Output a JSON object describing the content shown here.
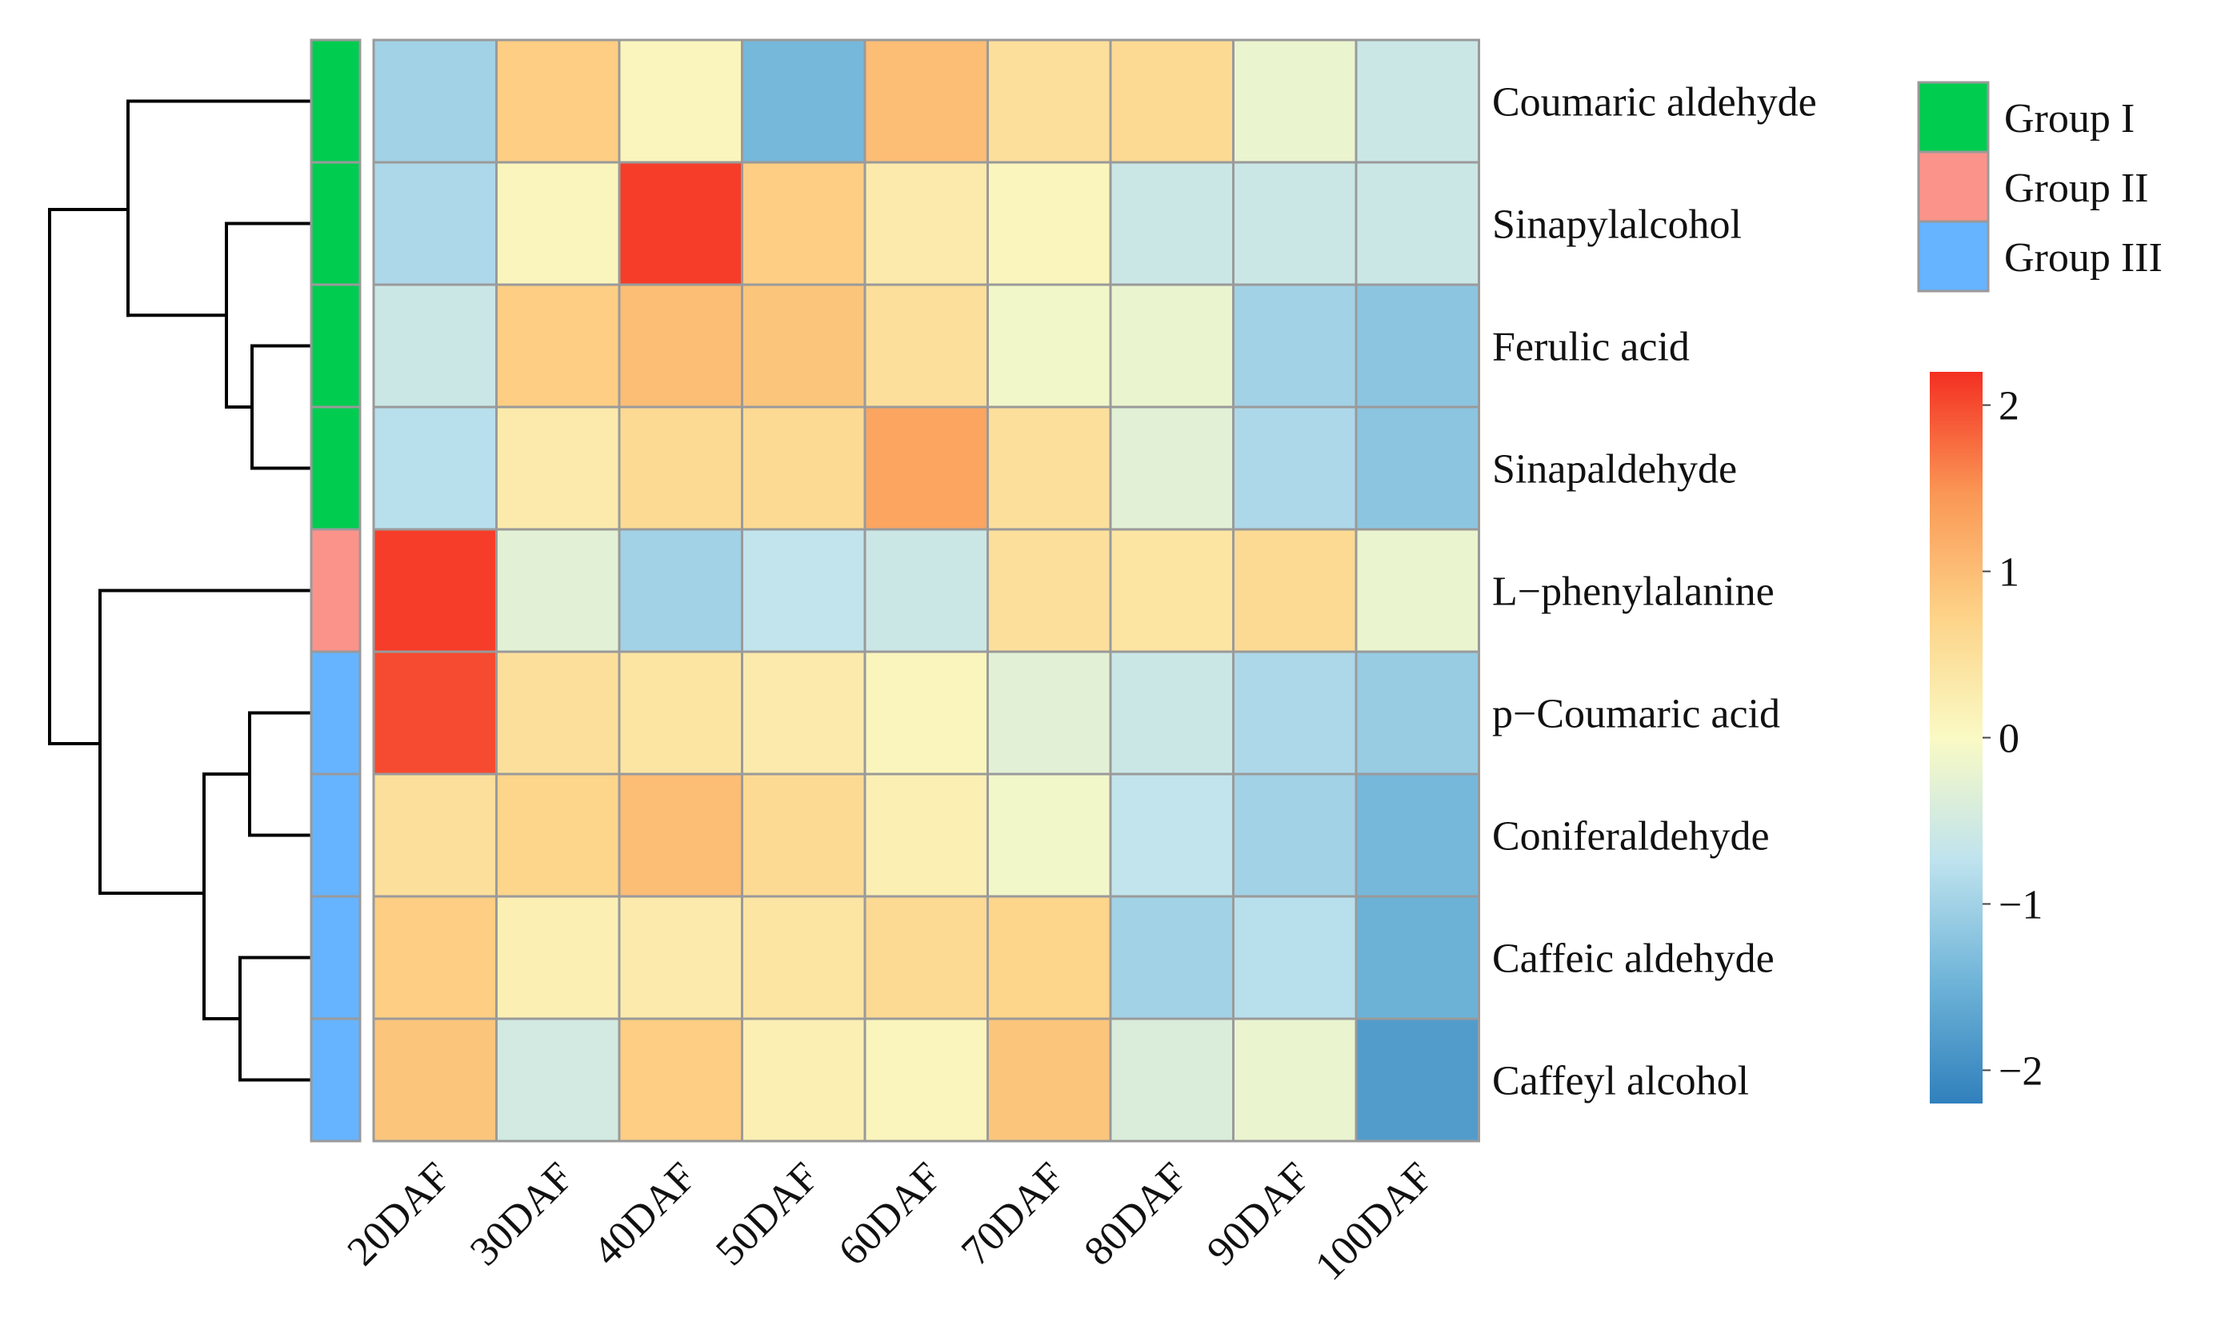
{
  "chart_data": {
    "type": "heatmap",
    "title": "",
    "columns": [
      "20DAF",
      "30DAF",
      "40DAF",
      "50DAF",
      "60DAF",
      "70DAF",
      "80DAF",
      "90DAF",
      "100DAF"
    ],
    "rows": [
      "Coumaric aldehyde",
      "Sinapylalcohol",
      "Ferulic acid",
      "Sinapaldehyde",
      "L−phenylalanine",
      "p−Coumaric acid",
      "Coniferaldehyde",
      "Caffeic aldehyde",
      "Caffeyl alcohol"
    ],
    "row_groups": [
      "Group I",
      "Group I",
      "Group I",
      "Group I",
      "Group II",
      "Group III",
      "Group III",
      "Group III",
      "Group III"
    ],
    "values": [
      [
        -1.0,
        0.8,
        0.1,
        -1.4,
        1.0,
        0.5,
        0.6,
        -0.2,
        -0.6
      ],
      [
        -0.9,
        0.1,
        2.1,
        0.8,
        0.3,
        0.1,
        -0.6,
        -0.6,
        -0.6
      ],
      [
        -0.6,
        0.8,
        1.0,
        0.9,
        0.5,
        -0.1,
        -0.2,
        -1.0,
        -1.2
      ],
      [
        -0.8,
        0.3,
        0.6,
        0.6,
        1.3,
        0.5,
        -0.3,
        -0.9,
        -1.2
      ],
      [
        2.1,
        -0.3,
        -1.0,
        -0.7,
        -0.6,
        0.5,
        0.4,
        0.6,
        -0.2
      ],
      [
        2.0,
        0.5,
        0.4,
        0.3,
        0.1,
        -0.3,
        -0.6,
        -0.9,
        -1.1
      ],
      [
        0.5,
        0.7,
        1.0,
        0.6,
        0.2,
        -0.1,
        -0.7,
        -1.0,
        -1.4
      ],
      [
        0.8,
        0.2,
        0.3,
        0.4,
        0.6,
        0.7,
        -1.0,
        -0.8,
        -1.5
      ],
      [
        0.9,
        -0.5,
        0.8,
        0.2,
        0.1,
        0.9,
        -0.4,
        -0.2,
        -1.8
      ]
    ],
    "color_scale": {
      "range": [
        -2.2,
        2.2
      ],
      "ticks": [
        2,
        1,
        0,
        -1,
        -2
      ],
      "tick_labels": [
        "2",
        "1",
        "0",
        "−1",
        "−2"
      ],
      "colors": [
        "#3080BC",
        "#6FB4D8",
        "#BFE3EE",
        "#FAFAC4",
        "#FDD388",
        "#FA9755",
        "#F42F22"
      ]
    },
    "dendrogram": "row",
    "legend": {
      "position": "top-right",
      "entries": [
        {
          "label": "Group I",
          "color": "#00CC50"
        },
        {
          "label": "Group II",
          "color": "#FB938A"
        },
        {
          "label": "Group III",
          "color": "#66B3FF"
        }
      ]
    }
  }
}
